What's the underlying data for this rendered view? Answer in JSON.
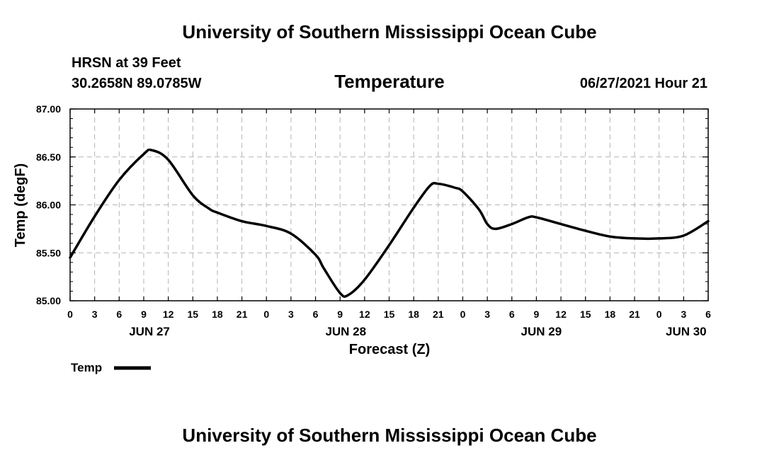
{
  "header": {
    "title": "University of Southern Mississippi Ocean Cube",
    "footer_title": "University of Southern Mississippi Ocean Cube",
    "station": "HRSN at 39 Feet",
    "coords": "30.2658N  89.0785W",
    "parameter": "Temperature",
    "datetime": "06/27/2021 Hour 21"
  },
  "chart_data": {
    "type": "line",
    "title": "Temperature",
    "xlabel": "Forecast (Z)",
    "ylabel": "Temp (degF)",
    "ylim": [
      85.0,
      87.0
    ],
    "xlim": [
      0,
      78
    ],
    "x_unit": "hours since 2021-06-27 00Z",
    "grid": true,
    "yticks": [
      {
        "v": 85.0,
        "label": "85.00"
      },
      {
        "v": 85.5,
        "label": "85.50"
      },
      {
        "v": 86.0,
        "label": "86.00"
      },
      {
        "v": 86.5,
        "label": "86.50"
      },
      {
        "v": 87.0,
        "label": "87.00"
      }
    ],
    "xticks": [
      {
        "h": 0,
        "label": "0"
      },
      {
        "h": 3,
        "label": "3"
      },
      {
        "h": 6,
        "label": "6"
      },
      {
        "h": 9,
        "label": "9"
      },
      {
        "h": 12,
        "label": "12"
      },
      {
        "h": 15,
        "label": "15"
      },
      {
        "h": 18,
        "label": "18"
      },
      {
        "h": 21,
        "label": "21"
      },
      {
        "h": 24,
        "label": "0"
      },
      {
        "h": 27,
        "label": "3"
      },
      {
        "h": 30,
        "label": "6"
      },
      {
        "h": 33,
        "label": "9"
      },
      {
        "h": 36,
        "label": "12"
      },
      {
        "h": 39,
        "label": "15"
      },
      {
        "h": 42,
        "label": "18"
      },
      {
        "h": 45,
        "label": "21"
      },
      {
        "h": 48,
        "label": "0"
      },
      {
        "h": 51,
        "label": "3"
      },
      {
        "h": 54,
        "label": "6"
      },
      {
        "h": 57,
        "label": "9"
      },
      {
        "h": 60,
        "label": "12"
      },
      {
        "h": 63,
        "label": "15"
      },
      {
        "h": 66,
        "label": "18"
      },
      {
        "h": 69,
        "label": "21"
      },
      {
        "h": 72,
        "label": "0"
      },
      {
        "h": 75,
        "label": "3"
      },
      {
        "h": 78,
        "label": "6"
      }
    ],
    "day_labels": [
      {
        "h": 9.7,
        "label": "JUN 27"
      },
      {
        "h": 33.7,
        "label": "JUN 28"
      },
      {
        "h": 57.6,
        "label": "JUN 29"
      },
      {
        "h": 75.3,
        "label": "JUN 30"
      }
    ],
    "series": [
      {
        "name": "Temp",
        "color": "#000000",
        "x": [
          0,
          3,
          6,
          9,
          10,
          12,
          15,
          17,
          18,
          21,
          24,
          27,
          30,
          31,
          33,
          34,
          36,
          39,
          42,
          44,
          45,
          47,
          48,
          50,
          51,
          52,
          54,
          56,
          57,
          60,
          63,
          66,
          69,
          72,
          75,
          78
        ],
        "y": [
          85.45,
          85.88,
          86.26,
          86.53,
          86.57,
          86.47,
          86.1,
          85.96,
          85.92,
          85.83,
          85.78,
          85.7,
          85.48,
          85.34,
          85.08,
          85.06,
          85.22,
          85.58,
          85.97,
          86.2,
          86.22,
          86.18,
          86.14,
          85.95,
          85.8,
          85.75,
          85.8,
          85.87,
          85.87,
          85.8,
          85.73,
          85.67,
          85.65,
          85.65,
          85.68,
          85.83
        ]
      }
    ],
    "legend": {
      "label": "Temp",
      "position": "bottom-left"
    }
  }
}
